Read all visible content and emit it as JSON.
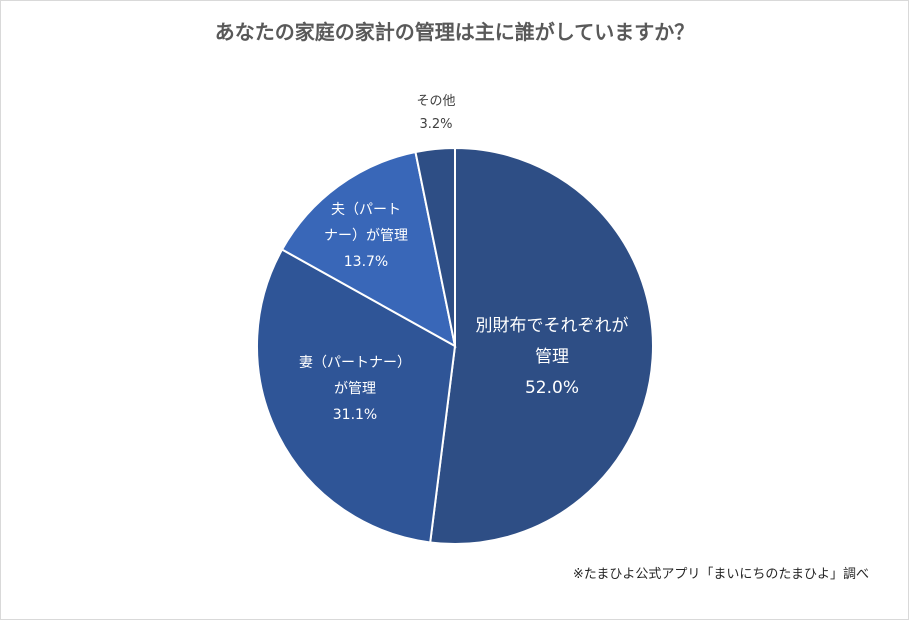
{
  "chart_data": {
    "type": "pie",
    "title": "あなたの家庭の家計の管理は主に誰がしていますか？",
    "categories": [
      "別財布でそれぞれが管理",
      "妻（パートナー）が管理",
      "夫（パートナー）が管理",
      "その他"
    ],
    "values": [
      52.0,
      31.1,
      13.7,
      3.2
    ],
    "value_labels": [
      "52.0%",
      "31.1%",
      "13.7%",
      "3.2%"
    ],
    "slice_labels": [
      [
        "別財布でそれぞれが",
        "管理",
        "52.0%"
      ],
      [
        "妻（パートナー）",
        "が管理",
        "31.1%"
      ],
      [
        "夫（パート",
        "ナー）が管理",
        "13.7%"
      ],
      [
        "その他",
        "3.2%"
      ]
    ],
    "colors": [
      "#2e4e85",
      "#2f5597",
      "#3967b8",
      "#2e4e85"
    ],
    "legend": "none",
    "source_note": "※たまひよ公式アプリ「まいにちのたまひよ」調べ"
  }
}
